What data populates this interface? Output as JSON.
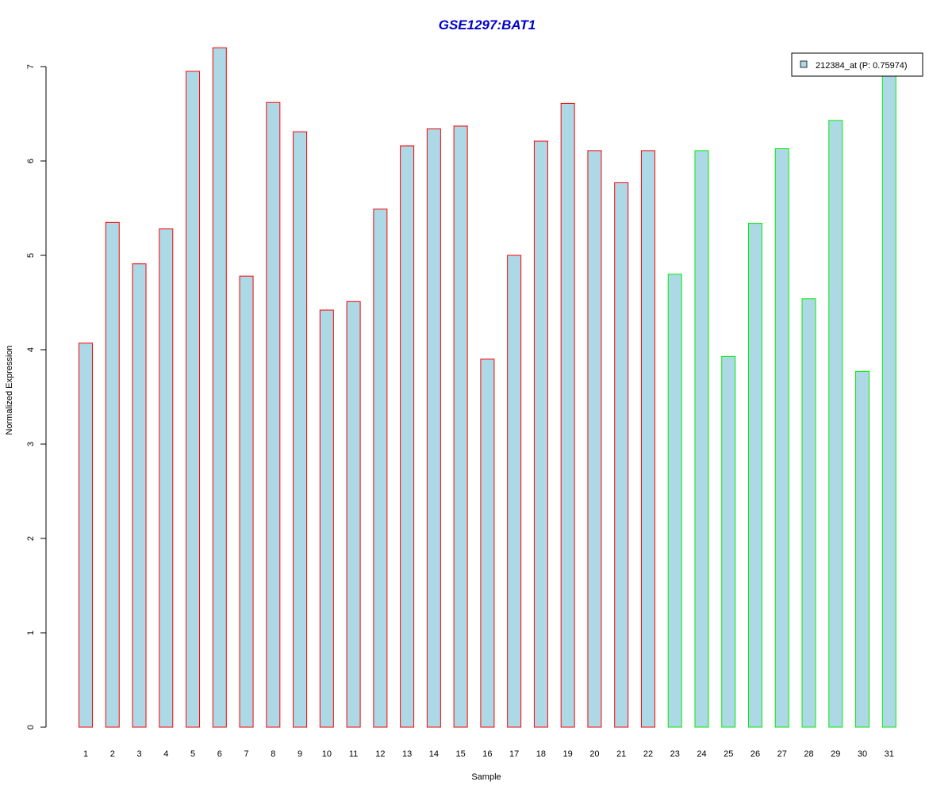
{
  "chart_data": {
    "type": "bar",
    "title": "GSE1297:BAT1",
    "xlabel": "Sample",
    "ylabel": "Normalized Expression",
    "ylim": [
      0,
      7.2
    ],
    "yticks": [
      0,
      1,
      2,
      3,
      4,
      5,
      6,
      7
    ],
    "categories": [
      "1",
      "2",
      "3",
      "4",
      "5",
      "6",
      "7",
      "8",
      "9",
      "10",
      "11",
      "12",
      "13",
      "14",
      "15",
      "16",
      "17",
      "18",
      "19",
      "20",
      "21",
      "22",
      "23",
      "24",
      "25",
      "26",
      "27",
      "28",
      "29",
      "30",
      "31"
    ],
    "series": [
      {
        "name": "212384_at (P: 0.75974)",
        "values": [
          4.07,
          5.35,
          4.91,
          5.28,
          6.95,
          7.2,
          4.78,
          6.62,
          6.31,
          4.42,
          4.51,
          5.49,
          6.16,
          6.34,
          6.37,
          3.9,
          5.0,
          6.21,
          6.61,
          6.11,
          5.77,
          6.11,
          4.8,
          6.11,
          3.93,
          5.34,
          6.13,
          4.54,
          6.43,
          3.77,
          6.93
        ]
      }
    ],
    "groups": [
      "red",
      "red",
      "red",
      "red",
      "red",
      "red",
      "red",
      "red",
      "red",
      "red",
      "red",
      "red",
      "red",
      "red",
      "red",
      "red",
      "red",
      "red",
      "red",
      "red",
      "red",
      "red",
      "green",
      "green",
      "green",
      "green",
      "green",
      "green",
      "green",
      "green",
      "green"
    ],
    "legend_position": "top-right",
    "grid": false
  },
  "colors": {
    "title": "#0000cc",
    "bar_fill": "#add8e6",
    "group_red": "#ff0000",
    "group_green": "#00ee00",
    "axis": "#000000"
  }
}
